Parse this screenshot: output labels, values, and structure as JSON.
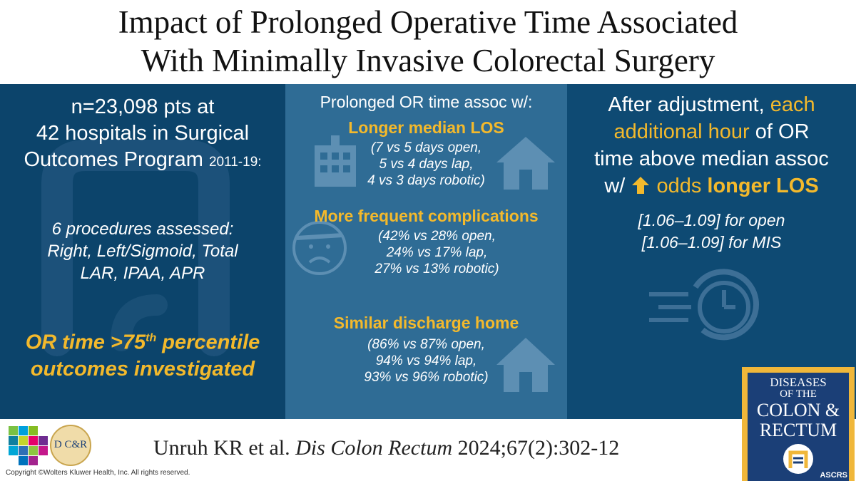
{
  "title": {
    "line1": "Impact of Prolonged Operative Time Associated",
    "line2": "With Minimally Invasive Colorectal Surgery"
  },
  "left": {
    "intro_line1": "n=23,098 pts at",
    "intro_line2": "42 hospitals in Surgical",
    "intro_line3": "Outcomes Program",
    "years": "2011-19:",
    "proc_line1": "6 procedures  assessed:",
    "proc_line2": "Right, Left/Sigmoid,  Total",
    "proc_line3": "LAR, IPAA, APR",
    "or_prefix": "OR time >75",
    "or_sup": "th",
    "or_suffix": " percentile",
    "outcomes": "outcomes investigated"
  },
  "middle": {
    "header": "Prolonged OR time assoc w/:",
    "los_title": "Longer median LOS",
    "los_line1": "(7 vs 5 days open,",
    "los_line2": "5 vs 4 days lap,",
    "los_line3": "4 vs 3 days robotic)",
    "comp_title": "More frequent complications",
    "comp_line1": "(42% vs 28% open,",
    "comp_line2": "24% vs 17% lap,",
    "comp_line3": "27% vs 13% robotic)",
    "dis_title": "Similar discharge home",
    "dis_line1": "(86% vs 87% open,",
    "dis_line2": "94% vs 94% lap,",
    "dis_line3": "93% vs 96% robotic)"
  },
  "right": {
    "line1_a": "After adjustment, ",
    "line1_b": "each",
    "line2": "additional hour",
    "line2_b": " of OR",
    "line3": "time above median assoc",
    "line4_a": "w/ ",
    "line4_b": "odds ",
    "line4_c": "longer LOS",
    "ci_open": "[1.06–1.09] for open",
    "ci_mis": "[1.06–1.09] for MIS"
  },
  "footer": {
    "authors": "Unruh KR et al. ",
    "journal": "Dis Colon Rectum",
    "ref": " 2024;67(2):302-12",
    "copyright": "Copyright ©Wolters Kluwer Health, Inc. All rights reserved.",
    "dcr_logo": "D C&R"
  },
  "journal_cover": {
    "line1": "DISEASES",
    "line2": "OF THE",
    "line3": "COLON &",
    "line4": "RECTUM",
    "badge": "ASCRS"
  },
  "colors": {
    "dark_blue": "#0c446b",
    "mid_blue": "#2f6c95",
    "gold": "#f3b92c"
  }
}
